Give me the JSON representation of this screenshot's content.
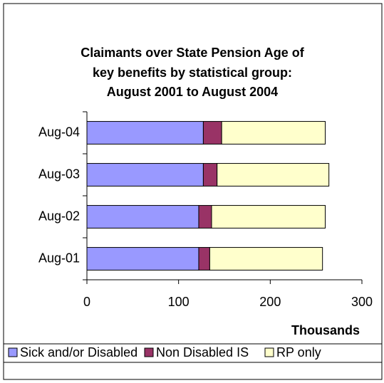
{
  "chart_data": {
    "type": "stacked-bar-horizontal",
    "title_lines": [
      "Claimants over State Pension Age of",
      "key benefits by statistical group:",
      "August 2001 to August 2004"
    ],
    "x_label": "Thousands",
    "categories": [
      "Aug-01",
      "Aug-02",
      "Aug-03",
      "Aug-04"
    ],
    "series": [
      {
        "name": "Sick and/or Disabled",
        "color": "#9999ff",
        "values": [
          122,
          122,
          127,
          127
        ]
      },
      {
        "name": "Non Disabled IS",
        "color": "#993366",
        "values": [
          12,
          14,
          15,
          20
        ]
      },
      {
        "name": "RP only",
        "color": "#ffffcc",
        "values": [
          123,
          124,
          122,
          113
        ]
      }
    ],
    "xlim": [
      0,
      300
    ],
    "xticks": [
      0,
      100,
      200,
      300
    ],
    "legend": "bottom"
  }
}
